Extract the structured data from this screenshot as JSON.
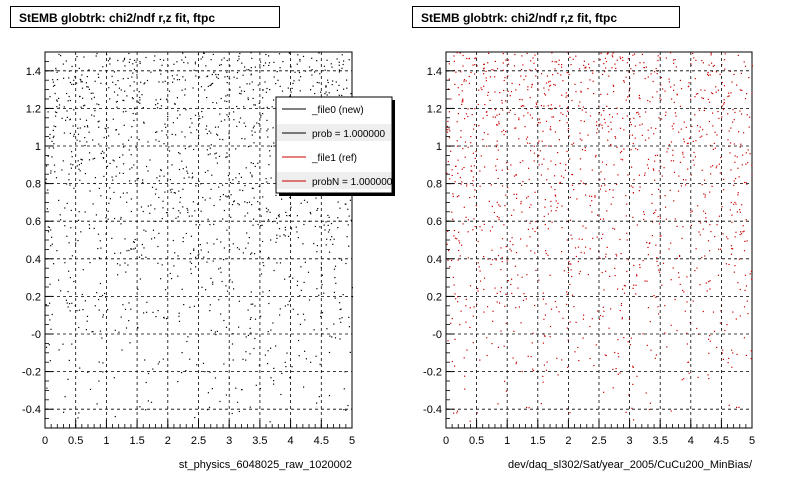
{
  "chart_data": [
    {
      "type": "scatter",
      "title": "StEMB globtrk: chi2/ndf r,z fit, ftpc",
      "xlabel": "st_physics_6048025_raw_1020002",
      "ylabel": "",
      "xlim": [
        0,
        5
      ],
      "ylim": [
        -0.5,
        1.5
      ],
      "x_ticks": [
        "0",
        "0.5",
        "1",
        "1.5",
        "2",
        "2.5",
        "3",
        "3.5",
        "4",
        "4.5",
        "5"
      ],
      "y_ticks": [
        "-0.4",
        "-0.2",
        "-0",
        "0.2",
        "0.4",
        "0.6",
        "0.8",
        "1",
        "1.2",
        "1.4"
      ],
      "grid": true,
      "series": [
        {
          "name": "_file0 (new)",
          "color": "#000000",
          "density": "higher toward top, sparse below 0"
        }
      ],
      "legend": {
        "placement": "top-right",
        "entries": [
          {
            "label": "_file0 (new)",
            "color": "#000000"
          },
          {
            "label": "prob = 1.000000",
            "color": "#000000"
          },
          {
            "label": "_file1 (ref)",
            "color": "#cc0000"
          },
          {
            "label": "probN = 1.000000",
            "color": "#cc0000"
          }
        ]
      }
    },
    {
      "type": "scatter",
      "title": "StEMB globtrk: chi2/ndf r,z fit, ftpc",
      "xlabel": "dev/daq_sl302/Sat/year_2005/CuCu200_MinBias/",
      "ylabel": "",
      "xlim": [
        0,
        5
      ],
      "ylim": [
        -0.5,
        1.5
      ],
      "x_ticks": [
        "0",
        "0.5",
        "1",
        "1.5",
        "2",
        "2.5",
        "3",
        "3.5",
        "4",
        "4.5",
        "5"
      ],
      "y_ticks": [
        "-0.4",
        "-0.2",
        "-0",
        "0.2",
        "0.4",
        "0.6",
        "0.8",
        "1",
        "1.2",
        "1.4"
      ],
      "grid": true,
      "series": [
        {
          "name": "_file1 (ref)",
          "color": "#cc0000",
          "density": "higher toward top, sparse below 0"
        }
      ]
    }
  ]
}
